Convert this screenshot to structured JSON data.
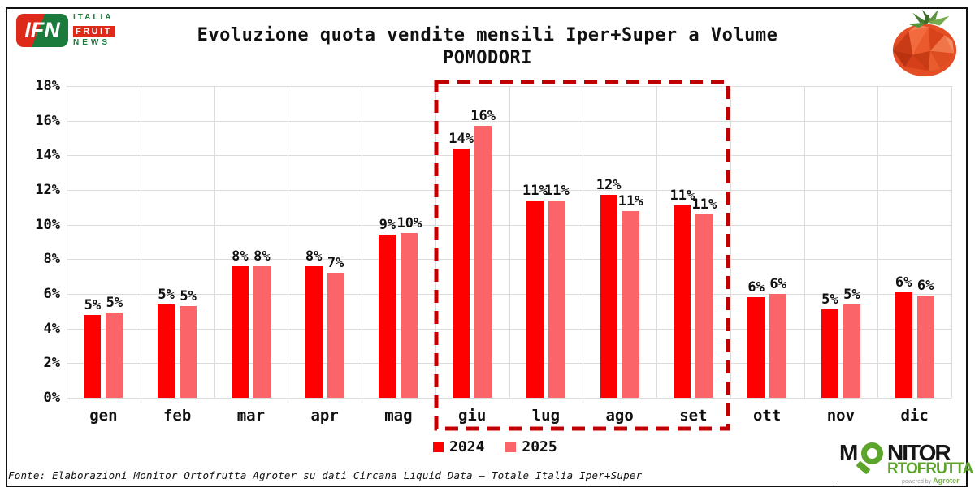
{
  "header": {
    "title_line1": "Evoluzione quota vendite mensili Iper+Super a Volume",
    "title_line2": "POMODORI",
    "ifn_logo": {
      "acronym": "IFN",
      "word1": "ITALIA",
      "word2": "FRUIT",
      "word3": "NEWS"
    }
  },
  "chart_data": {
    "type": "bar",
    "title": "Evoluzione quota vendite mensili Iper+Super a Volume POMODORI",
    "categories": [
      "gen",
      "feb",
      "mar",
      "apr",
      "mag",
      "giu",
      "lug",
      "ago",
      "set",
      "ott",
      "nov",
      "dic"
    ],
    "series": [
      {
        "name": "2024",
        "color": "#FE0000",
        "values": [
          4.8,
          5.4,
          7.6,
          7.6,
          9.4,
          14.4,
          11.4,
          11.7,
          11.1,
          5.8,
          5.1,
          6.1
        ],
        "data_labels": [
          "5%",
          "5%",
          "8%",
          "8%",
          "9%",
          "14%",
          "11%",
          "12%",
          "11%",
          "6%",
          "5%",
          "6%"
        ]
      },
      {
        "name": "2025",
        "color": "#FB6569",
        "values": [
          4.9,
          5.3,
          7.6,
          7.2,
          9.5,
          15.7,
          11.4,
          10.8,
          10.6,
          6.0,
          5.4,
          5.9
        ],
        "data_labels": [
          "5%",
          "5%",
          "8%",
          "7%",
          "10%",
          "16%",
          "11%",
          "11%",
          "11%",
          "6%",
          "5%",
          "6%"
        ]
      }
    ],
    "ylim": [
      0,
      18
    ],
    "ytick_step": 2,
    "ytick_labels": [
      "0%",
      "2%",
      "4%",
      "6%",
      "8%",
      "10%",
      "12%",
      "14%",
      "16%",
      "18%"
    ],
    "grid": true,
    "legend_position": "bottom",
    "highlight": {
      "categories": [
        "giu",
        "lug",
        "ago",
        "set"
      ],
      "box_color": "#C00000"
    }
  },
  "legend": {
    "items": [
      {
        "label": "2024",
        "color": "#FE0000"
      },
      {
        "label": "2025",
        "color": "#FB6569"
      }
    ]
  },
  "footer": {
    "source_text": "Fonte: Elaborazioni Monitor Ortofrutta Agroter su dati Circana Liquid Data – Totale Italia Iper+Super"
  },
  "branding": {
    "monitor": {
      "m": "M",
      "nitor": "NITOR",
      "line2": "RTOFRUTTA",
      "powered_by": "powered by",
      "brand": "Agroter"
    },
    "tomato_icon": "low-poly-tomato"
  },
  "colors": {
    "bar_2024": "#FE0000",
    "bar_2025": "#FB6569",
    "grid": "#DCDCDC",
    "highlight_box": "#C00000",
    "frame": "#111111",
    "ifn_green": "#1B7B3C",
    "ifn_red": "#DD2A1B",
    "monitor_green": "#5DA42C"
  }
}
